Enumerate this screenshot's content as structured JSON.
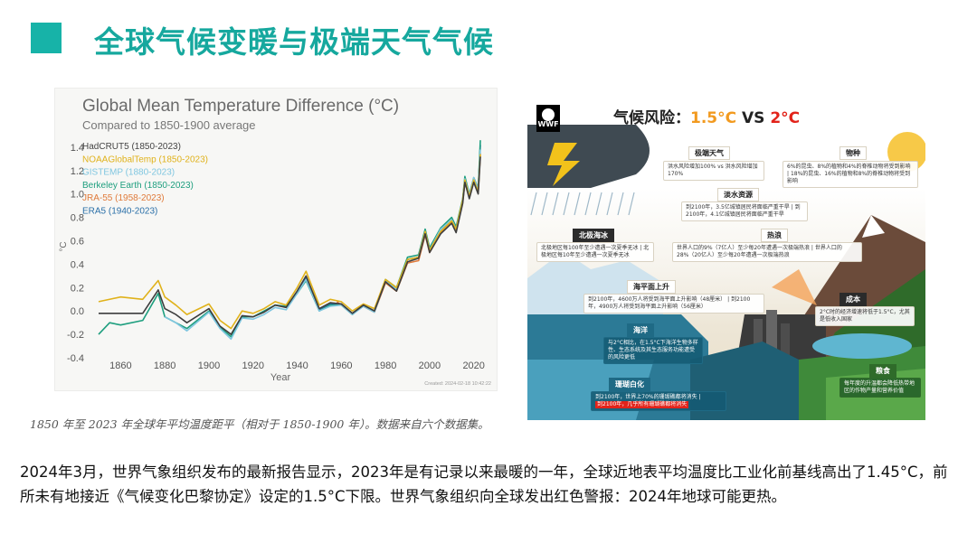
{
  "slide": {
    "title": "全球气候变暖与极端天气气候",
    "accent_color": "#17b3a8"
  },
  "chart": {
    "title": "Global Mean Temperature Difference (°C)",
    "subtitle": "Compared to 1850-1900 average",
    "source_note": "Created: 2024-02-18 10:42:22",
    "caption": "1850 年至 2023 年全球年平均温度距平（相对于 1850-1900 年）。数据来自六个数据集。"
  },
  "chart_data": {
    "type": "line",
    "title": "Global Mean Temperature Difference (°C)",
    "subtitle": "Compared to 1850-1900 average",
    "xlabel": "Year",
    "ylabel": "°C",
    "xlim": [
      1850,
      2023
    ],
    "ylim": [
      -0.4,
      1.5
    ],
    "x_ticks": [
      1860,
      1880,
      1900,
      1920,
      1940,
      1960,
      1980,
      2000,
      2020
    ],
    "y_ticks": [
      -0.4,
      -0.2,
      0.0,
      0.2,
      0.4,
      0.6,
      0.8,
      1.0,
      1.2,
      1.4
    ],
    "legend_position": "top-left",
    "grid": false,
    "series": [
      {
        "name": "HadCRUT5 (1850-2023)",
        "color": "#3d3d3d",
        "x": [
          1850,
          1860,
          1870,
          1877,
          1880,
          1885,
          1890,
          1900,
          1905,
          1910,
          1915,
          1920,
          1925,
          1930,
          1935,
          1940,
          1944,
          1950,
          1955,
          1960,
          1965,
          1970,
          1975,
          1980,
          1985,
          1990,
          1995,
          1998,
          2000,
          2005,
          2010,
          2012,
          2015,
          2016,
          2018,
          2020,
          2022,
          2023
        ],
        "values": [
          -0.02,
          -0.02,
          -0.02,
          0.18,
          0.02,
          -0.03,
          -0.1,
          0.02,
          -0.13,
          -0.2,
          -0.04,
          -0.05,
          -0.01,
          0.05,
          0.03,
          0.17,
          0.3,
          0.02,
          0.07,
          0.06,
          -0.02,
          0.05,
          0.0,
          0.25,
          0.17,
          0.42,
          0.45,
          0.66,
          0.5,
          0.66,
          0.75,
          0.67,
          0.92,
          1.1,
          0.96,
          1.1,
          1.0,
          1.32
        ]
      },
      {
        "name": "NOAAGlobalTemp (1850-2023)",
        "color": "#e0b21b",
        "x": [
          1850,
          1860,
          1870,
          1877,
          1880,
          1885,
          1890,
          1900,
          1905,
          1910,
          1915,
          1920,
          1925,
          1930,
          1935,
          1940,
          1944,
          1950,
          1955,
          1960,
          1965,
          1970,
          1975,
          1980,
          1985,
          1990,
          1995,
          1998,
          2000,
          2005,
          2010,
          2012,
          2015,
          2016,
          2018,
          2020,
          2022,
          2023
        ],
        "values": [
          0.08,
          0.12,
          0.1,
          0.26,
          0.12,
          0.05,
          -0.03,
          0.06,
          -0.08,
          -0.15,
          0.0,
          -0.02,
          0.02,
          0.08,
          0.05,
          0.2,
          0.34,
          0.05,
          0.1,
          0.08,
          0.0,
          0.06,
          0.02,
          0.27,
          0.2,
          0.44,
          0.46,
          0.68,
          0.52,
          0.68,
          0.77,
          0.7,
          0.95,
          1.12,
          0.98,
          1.12,
          1.02,
          1.34
        ]
      },
      {
        "name": "GISTEMP (1880-2023)",
        "color": "#7fc6e0",
        "x": [
          1880,
          1885,
          1890,
          1900,
          1905,
          1910,
          1915,
          1920,
          1925,
          1930,
          1935,
          1940,
          1944,
          1950,
          1955,
          1960,
          1965,
          1970,
          1975,
          1980,
          1985,
          1990,
          1995,
          1998,
          2000,
          2005,
          2010,
          2012,
          2015,
          2016,
          2018,
          2020,
          2022,
          2023
        ],
        "values": [
          -0.05,
          -0.1,
          -0.17,
          -0.01,
          -0.15,
          -0.24,
          -0.06,
          -0.07,
          -0.03,
          0.03,
          0.01,
          0.15,
          0.27,
          0.0,
          0.04,
          0.05,
          -0.03,
          0.04,
          -0.01,
          0.26,
          0.18,
          0.44,
          0.46,
          0.68,
          0.52,
          0.7,
          0.78,
          0.7,
          0.94,
          1.13,
          0.99,
          1.14,
          1.04,
          1.38
        ]
      },
      {
        "name": "Berkeley Earth (1850-2023)",
        "color": "#1d9e7e",
        "x": [
          1850,
          1855,
          1860,
          1870,
          1877,
          1880,
          1885,
          1890,
          1900,
          1905,
          1910,
          1915,
          1920,
          1925,
          1930,
          1935,
          1940,
          1944,
          1950,
          1955,
          1960,
          1965,
          1970,
          1975,
          1980,
          1985,
          1990,
          1995,
          1998,
          2000,
          2005,
          2010,
          2012,
          2015,
          2016,
          2018,
          2020,
          2022,
          2023
        ],
        "values": [
          -0.2,
          -0.1,
          -0.12,
          -0.08,
          0.15,
          -0.05,
          -0.1,
          -0.15,
          0.0,
          -0.14,
          -0.22,
          -0.05,
          -0.05,
          0.0,
          0.05,
          0.04,
          0.15,
          0.26,
          0.0,
          0.05,
          0.05,
          -0.03,
          0.05,
          0.0,
          0.27,
          0.2,
          0.46,
          0.48,
          0.7,
          0.54,
          0.71,
          0.8,
          0.72,
          0.96,
          1.15,
          1.0,
          1.14,
          1.05,
          1.46
        ]
      },
      {
        "name": "JRA-55 (1958-2023)",
        "color": "#e07a3a",
        "x": [
          1958,
          1960,
          1965,
          1970,
          1975,
          1980,
          1985,
          1990,
          1995,
          1998,
          2000,
          2005,
          2010,
          2012,
          2015,
          2016,
          2018,
          2020,
          2022,
          2023
        ],
        "values": [
          0.08,
          0.05,
          -0.02,
          0.04,
          -0.01,
          0.24,
          0.17,
          0.41,
          0.43,
          0.65,
          0.5,
          0.67,
          0.76,
          0.68,
          0.93,
          1.1,
          0.97,
          1.12,
          1.01,
          1.35
        ]
      },
      {
        "name": "ERA5 (1940-2023)",
        "color": "#2a6fa8",
        "x": [
          1940,
          1944,
          1950,
          1955,
          1960,
          1965,
          1970,
          1975,
          1980,
          1985,
          1990,
          1995,
          1998,
          2000,
          2005,
          2010,
          2012,
          2015,
          2016,
          2018,
          2020,
          2022,
          2023
        ],
        "values": [
          0.15,
          0.28,
          0.01,
          0.06,
          0.06,
          -0.02,
          0.05,
          0.0,
          0.26,
          0.18,
          0.44,
          0.46,
          0.67,
          0.52,
          0.68,
          0.78,
          0.7,
          0.95,
          1.12,
          0.98,
          1.13,
          1.03,
          1.42
        ]
      }
    ]
  },
  "infographic": {
    "logo_text": "WWF",
    "title_prefix": "气候风险：",
    "title_15": "1.5°C",
    "title_vs": " VS ",
    "title_2": "2°C",
    "extreme_weather": {
      "head": "极端天气",
      "a": "洪水风险增加100%",
      "b": "洪水风险增加170%"
    },
    "species": {
      "head": "物种",
      "a": "6%的昆虫、8%的植物和4%的脊椎动物将受到影响",
      "b": "18%的昆虫、16%的植物和8%的脊椎动物将受到影响"
    },
    "freshwater": {
      "head": "淡水资源",
      "a": "到2100年，3.5亿城镇居民将面临严重干旱",
      "b": "到2100年，4.1亿城镇居民将面临严重干旱"
    },
    "arctic": {
      "head": "北极海冰",
      "a": "北极地区每100年至少遭遇一次夏季无冰",
      "b": "北极地区每10年至少遭遇一次夏季无冰"
    },
    "heatwave": {
      "head": "热浪",
      "a": "世界人口的9%（7亿人）至少每20年遭遇一次极端热浪",
      "b": "世界人口的28%（20亿人）至少每20年遭遇一次极端热浪"
    },
    "sea_level": {
      "head": "海平面上升",
      "a": "到2100年，4600万人将受到海平面上升影响（48厘米）",
      "b": "到2100年，4900万人将受到海平面上升影响（56厘米）"
    },
    "ocean": {
      "head": "海洋",
      "text": "与2°C相比，在1.5°C下海洋生物多样性、生态系统及其生态服务功能遭受的风险更低"
    },
    "coral": {
      "head": "珊瑚白化",
      "a": "到2100年，世界上70%的珊瑚礁都将消失",
      "b": "到2100年，几乎所有珊瑚礁都将消失"
    },
    "cost": {
      "head": "成本",
      "text": "2°C时的经济增速将低于1.5°C，尤其是低收入国家"
    },
    "food": {
      "head": "粮食",
      "text": "每年度的升温都会降低热带地区的作物产量和营养价值"
    }
  },
  "body": {
    "paragraph": "2024年3月，世界气象组织发布的最新报告显示，2023年是有记录以来最暖的一年，全球近地表平均温度比工业化前基线高出了1.45°C，前所未有地接近《气候变化巴黎协定》设定的1.5°C下限。世界气象组织向全球发出红色警报：2024年地球可能更热。"
  }
}
